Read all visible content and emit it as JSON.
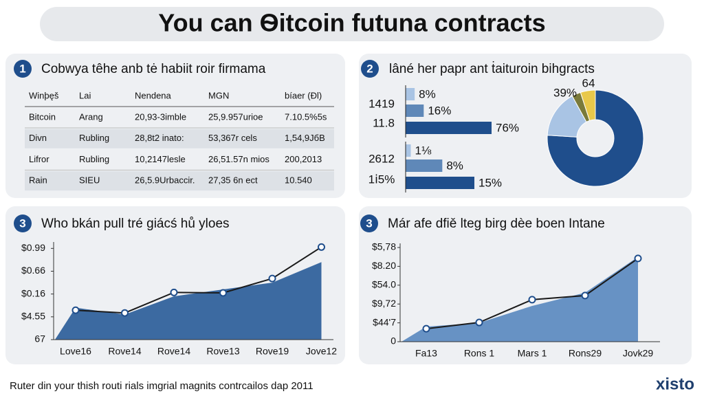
{
  "header": {
    "title": "You can Ѳitcoin futuna contracts"
  },
  "table": {
    "number": "1",
    "title": "Cobwya têhe anb tė habiit roir firmama",
    "columns": [
      "Winþęš",
      "Lai",
      "Nendena",
      "MGN",
      "bíaer (Ðl)"
    ],
    "rows": [
      [
        "Bitcoin",
        "Arang",
        "20,93-3imble",
        "25,9.957urioe",
        "7.10.5%5s"
      ],
      [
        "Divn",
        "Rubling",
        "28,8t2 inato:",
        "53,367r cels",
        "1,54,9JбB"
      ],
      [
        "Lifror",
        "Rubling",
        "10,2147lesle",
        "26,51.57n mios",
        "200,2013"
      ],
      [
        "Rain",
        "SIEU",
        "26,5.9Urbaccir.",
        "27,35 6n ect",
        "10.540"
      ]
    ]
  },
  "bars": {
    "number": "2",
    "title": "lâné her papr ant ṫaituroin bihgracts",
    "side_labels": [
      "1419",
      "11.8",
      "2612",
      "1ⅰ5%"
    ],
    "colors": [
      "#a9c4e4",
      "#5f88b8",
      "#1f4e8c"
    ],
    "groups": [
      {
        "values": [
          8,
          16,
          76
        ],
        "value_labels": [
          "8%",
          "16%",
          "76%"
        ]
      },
      {
        "values": [
          1.125,
          8,
          15
        ],
        "value_labels": [
          "1⅛",
          "8%",
          "15%"
        ]
      }
    ]
  },
  "pie": {
    "type": "pie",
    "labels": [
      "39%",
      "64"
    ],
    "values": [
      76,
      16,
      3,
      5
    ],
    "colors": [
      "#1f4e8c",
      "#a9c4e4",
      "#7a7a3a",
      "#e8c84a"
    ]
  },
  "line_charts": [
    {
      "type": "line",
      "number": "3",
      "title": "Who bkán pull tré giácś hů yloes",
      "categories": [
        "Love16",
        "Rove14",
        "Rove14",
        "Rove13",
        "Rove19",
        "Jove12"
      ],
      "ylim": [
        0,
        4.1
      ],
      "yticks": [
        {
          "value": 0,
          "label": "67"
        },
        {
          "value": 1,
          "label": "$4.55"
        },
        {
          "value": 2,
          "label": "$0.16"
        },
        {
          "value": 3,
          "label": "$0.66"
        },
        {
          "value": 4,
          "label": "$0.99"
        }
      ],
      "series": [
        {
          "type": "area",
          "color": "#2d5e9a",
          "values": [
            1.4,
            1.1,
            1.9,
            2.2,
            2.5,
            3.4
          ]
        },
        {
          "type": "line",
          "color": "#1a1a1a",
          "values": [
            1.29,
            1.17,
            2.07,
            2.05,
            2.68,
            4.06
          ]
        }
      ]
    },
    {
      "type": "line",
      "number": "3",
      "title": "Már afe dfiě lteg birg dèe boen Intane",
      "categories": [
        "Fa13",
        "Rons 1",
        "Mars 1",
        "Rons29",
        "Jovk29"
      ],
      "ylim": [
        0,
        5
      ],
      "yticks": [
        {
          "value": 0,
          "label": "0"
        },
        {
          "value": 1,
          "label": "$44'7"
        },
        {
          "value": 2,
          "label": "$9,72"
        },
        {
          "value": 3,
          "label": "$54.0"
        },
        {
          "value": 4,
          "label": "$8.20"
        },
        {
          "value": 5,
          "label": "$5,78"
        }
      ],
      "series": [
        {
          "type": "area",
          "color": "#5b8ac0",
          "values": [
            0.8,
            1.0,
            1.9,
            2.6,
            4.5
          ]
        },
        {
          "type": "line",
          "color": "#1a1a1a",
          "values": [
            0.69,
            1.02,
            2.23,
            2.45,
            4.42
          ]
        }
      ]
    }
  ],
  "footer": {
    "text": "Ruter din your thish routi rials imgrial magnits contrcailos dap 2011",
    "brand": "xisto"
  }
}
